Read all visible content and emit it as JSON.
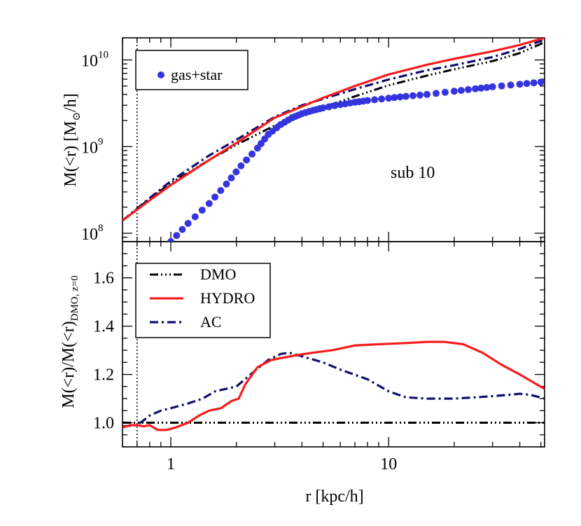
{
  "chart_data": [
    {
      "type": "line",
      "panel": "top",
      "annotation": "sub 10",
      "ylabel": {
        "main": "M(<r) [M",
        "sub": "⊙",
        "tail": "/h]"
      },
      "xscale": "log",
      "yscale": "log",
      "xlim": [
        0.6,
        52
      ],
      "ylim": [
        80000000,
        18000000000
      ],
      "ytick_labels": [
        {
          "value": 100000000,
          "base": "10",
          "exp": "8"
        },
        {
          "value": 1000000000,
          "base": "10",
          "exp": "9"
        },
        {
          "value": 10000000000,
          "base": "10",
          "exp": "10"
        }
      ],
      "legend": {
        "position": "top-left",
        "entries": [
          "gas+star"
        ]
      },
      "series": [
        {
          "name": "gas+star",
          "style": "dots",
          "color": "#3535e0",
          "x": [
            1.0,
            1.2,
            1.5,
            1.8,
            2.1,
            2.5,
            2.8,
            3.2,
            3.6,
            4.0,
            4.5,
            5.0,
            6.0,
            7.0,
            8.0,
            10.0,
            12.0,
            15.0,
            20.0,
            25.0,
            30.0,
            40.0,
            50.0
          ],
          "y": [
            80000000,
            130000000,
            220000000,
            370000000,
            600000000,
            960000000,
            1380000000,
            1800000000,
            2150000000,
            2400000000,
            2620000000,
            2800000000,
            3050000000,
            3250000000,
            3400000000,
            3620000000,
            3800000000,
            4000000000,
            4350000000,
            4650000000,
            4900000000,
            5250000000,
            5550000000
          ]
        },
        {
          "name": "DMO",
          "style": "dash-dot-dot",
          "color": "#000000",
          "x": [
            0.6,
            0.8,
            1.0,
            1.5,
            2.0,
            3.0,
            4.0,
            5.0,
            7.0,
            10.0,
            15.0,
            20.0,
            30.0,
            40.0,
            52.0
          ],
          "y": [
            140000000,
            250000000,
            380000000,
            700000000,
            1050000000,
            1750000000,
            2300000000,
            2850000000,
            3800000000,
            5100000000,
            6600000000,
            7800000000,
            9700000000,
            12000000000,
            16000000000
          ]
        },
        {
          "name": "HYDRO",
          "style": "solid",
          "color": "#f51d1d",
          "x": [
            0.6,
            0.8,
            1.0,
            1.5,
            2.0,
            3.0,
            4.0,
            5.0,
            7.0,
            10.0,
            15.0,
            20.0,
            30.0,
            40.0,
            52.0
          ],
          "y": [
            140000000,
            240000000,
            360000000,
            700000000,
            1100000000,
            2150000000,
            2900000000,
            3650000000,
            5000000000,
            6800000000,
            8800000000,
            10300000000,
            12600000000,
            14900000000,
            18000000000
          ]
        },
        {
          "name": "AC",
          "style": "dash-dot",
          "color": "#10106e",
          "x": [
            0.6,
            0.8,
            1.0,
            1.5,
            2.0,
            3.0,
            4.0,
            5.0,
            7.0,
            10.0,
            15.0,
            20.0,
            30.0,
            40.0,
            52.0
          ],
          "y": [
            140000000,
            255000000,
            400000000,
            790000000,
            1200000000,
            2200000000,
            3000000000,
            3550000000,
            4600000000,
            5950000000,
            7600000000,
            8700000000,
            10800000000,
            13400000000,
            17200000000
          ]
        }
      ]
    },
    {
      "type": "line",
      "panel": "bottom",
      "xlabel": "r [kpc/h]",
      "ylabel": {
        "main": "M(<r)/M(<r)",
        "sub": "DMO, z=0"
      },
      "xscale": "log",
      "xlim": [
        0.6,
        52
      ],
      "ylim": [
        0.9,
        1.75
      ],
      "xtick_labels": [
        {
          "value": 1,
          "label": "1"
        },
        {
          "value": 10,
          "label": "10"
        }
      ],
      "ytick_labels": [
        {
          "value": 1.0,
          "label": "1.0"
        },
        {
          "value": 1.2,
          "label": "1.2"
        },
        {
          "value": 1.4,
          "label": "1.4"
        },
        {
          "value": 1.6,
          "label": "1.6"
        }
      ],
      "legend": {
        "position": "top-left",
        "entries": [
          "DMO",
          "HYDRO",
          "AC"
        ]
      },
      "series": [
        {
          "name": "DMO",
          "style": "dash-dot-dot",
          "color": "#000000",
          "x": [
            0.6,
            52.0
          ],
          "y": [
            1.0,
            1.0
          ]
        },
        {
          "name": "HYDRO",
          "style": "solid",
          "color": "#f51d1d",
          "x": [
            0.6,
            0.65,
            0.7,
            0.75,
            0.8,
            0.87,
            0.95,
            1.05,
            1.2,
            1.35,
            1.5,
            1.7,
            1.9,
            2.05,
            2.2,
            2.5,
            2.9,
            3.3,
            3.8,
            4.5,
            5.5,
            7.0,
            9.0,
            12.0,
            15.0,
            18.0,
            22.0,
            27.0,
            33.0,
            40.0,
            52.0
          ],
          "y": [
            0.98,
            0.99,
            0.99,
            0.985,
            0.99,
            0.97,
            0.97,
            0.98,
            1.0,
            1.03,
            1.05,
            1.06,
            1.09,
            1.1,
            1.16,
            1.23,
            1.26,
            1.27,
            1.28,
            1.29,
            1.3,
            1.32,
            1.325,
            1.33,
            1.335,
            1.335,
            1.325,
            1.29,
            1.24,
            1.2,
            1.14
          ]
        },
        {
          "name": "AC",
          "style": "dash-dot",
          "color": "#10106e",
          "x": [
            0.6,
            0.7,
            0.75,
            0.8,
            0.9,
            1.0,
            1.2,
            1.4,
            1.6,
            2.0,
            2.4,
            2.8,
            3.2,
            3.5,
            4.0,
            5.0,
            6.0,
            8.0,
            10.0,
            12.0,
            15.0,
            20.0,
            25.0,
            30.0,
            35.0,
            40.0,
            45.0,
            52.0
          ],
          "y": [
            0.985,
            0.99,
            1.01,
            1.03,
            1.05,
            1.06,
            1.08,
            1.1,
            1.13,
            1.15,
            1.21,
            1.26,
            1.285,
            1.29,
            1.275,
            1.25,
            1.22,
            1.18,
            1.13,
            1.105,
            1.1,
            1.1,
            1.105,
            1.11,
            1.115,
            1.12,
            1.115,
            1.1
          ]
        }
      ]
    }
  ]
}
